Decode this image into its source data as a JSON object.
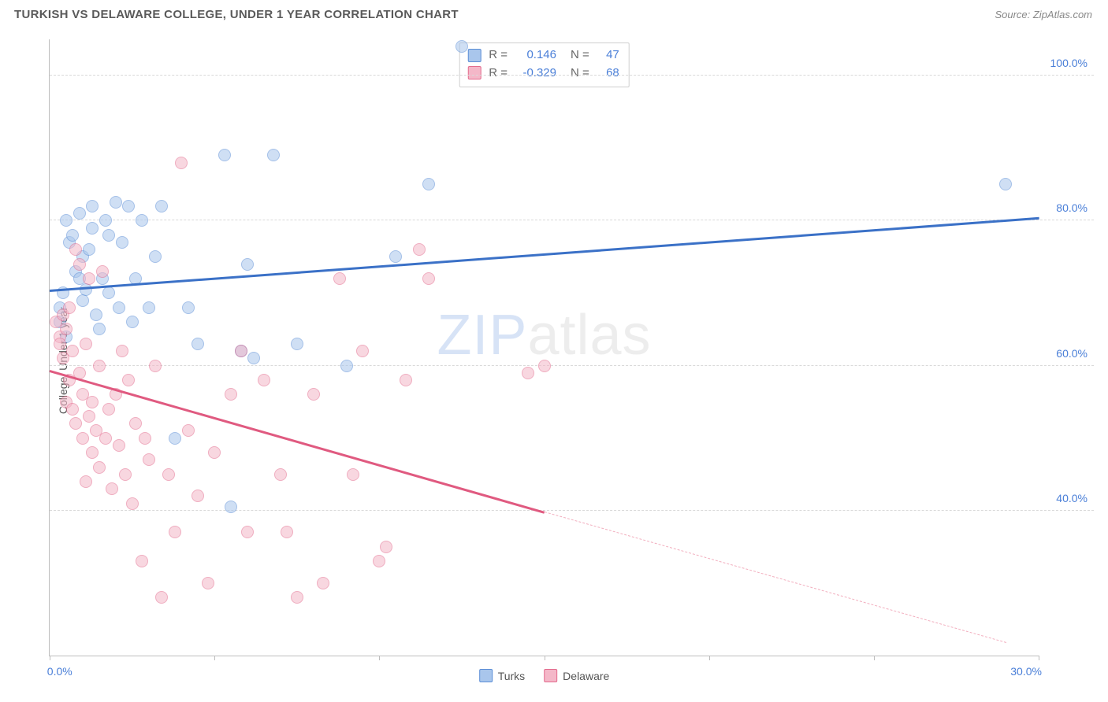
{
  "title": "TURKISH VS DELAWARE COLLEGE, UNDER 1 YEAR CORRELATION CHART",
  "source": "Source: ZipAtlas.com",
  "ylabel": "College, Under 1 year",
  "watermark_prefix": "ZIP",
  "watermark_suffix": "atlas",
  "chart": {
    "type": "scatter",
    "xlim": [
      0,
      30
    ],
    "ylim": [
      20,
      105
    ],
    "xticks": [
      0,
      5,
      10,
      15,
      20,
      25,
      30
    ],
    "xticks_labeled": {
      "0": "0.0%",
      "30": "30.0%"
    },
    "yticks": [
      40,
      60,
      80,
      100
    ],
    "ytick_labels": [
      "40.0%",
      "60.0%",
      "80.0%",
      "100.0%"
    ],
    "grid_color": "#d9d9d9",
    "axis_color": "#bdbdbd",
    "tick_label_color": "#4a7fd8",
    "marker_radius": 8,
    "background_color": "#ffffff",
    "series": [
      {
        "name": "Turks",
        "fill": "#a9c6ec",
        "stroke": "#5b8ed6",
        "fill_opacity": 0.55,
        "R": "0.146",
        "N": "47",
        "trend": {
          "x1": 0,
          "y1": 70.5,
          "x2": 30,
          "y2": 80.5,
          "color": "#3b71c7",
          "width": 2.5
        },
        "points": [
          [
            0.3,
            68
          ],
          [
            0.3,
            66
          ],
          [
            0.4,
            70
          ],
          [
            0.5,
            80
          ],
          [
            0.5,
            64
          ],
          [
            0.6,
            77
          ],
          [
            0.7,
            78
          ],
          [
            0.8,
            73
          ],
          [
            0.9,
            81
          ],
          [
            0.9,
            72
          ],
          [
            1.0,
            75
          ],
          [
            1.0,
            69
          ],
          [
            1.1,
            70.5
          ],
          [
            1.2,
            76
          ],
          [
            1.3,
            82
          ],
          [
            1.3,
            79
          ],
          [
            1.4,
            67
          ],
          [
            1.5,
            65
          ],
          [
            1.6,
            72
          ],
          [
            1.7,
            80
          ],
          [
            1.8,
            70
          ],
          [
            1.8,
            78
          ],
          [
            2.0,
            82.5
          ],
          [
            2.1,
            68
          ],
          [
            2.2,
            77
          ],
          [
            2.4,
            82
          ],
          [
            2.5,
            66
          ],
          [
            2.6,
            72
          ],
          [
            2.8,
            80
          ],
          [
            3.0,
            68
          ],
          [
            3.2,
            75
          ],
          [
            3.4,
            82
          ],
          [
            3.8,
            50
          ],
          [
            4.2,
            68
          ],
          [
            4.5,
            63
          ],
          [
            5.3,
            89
          ],
          [
            5.5,
            40.5
          ],
          [
            5.8,
            62
          ],
          [
            6.0,
            74
          ],
          [
            6.2,
            61
          ],
          [
            6.8,
            89
          ],
          [
            7.5,
            63
          ],
          [
            9.0,
            60
          ],
          [
            10.5,
            75
          ],
          [
            11.5,
            85
          ],
          [
            12.5,
            104
          ],
          [
            29.0,
            85
          ]
        ]
      },
      {
        "name": "Delaware",
        "fill": "#f4b7c8",
        "stroke": "#e36b8d",
        "fill_opacity": 0.55,
        "R": "-0.329",
        "N": "68",
        "trend": {
          "x1": 0,
          "y1": 59.5,
          "x2": 15,
          "y2": 40,
          "color": "#e05a80",
          "width": 2.5
        },
        "trend_dash": {
          "x1": 15,
          "y1": 40,
          "x2": 29,
          "y2": 22,
          "color": "#f2aebe"
        },
        "points": [
          [
            0.2,
            66
          ],
          [
            0.3,
            64
          ],
          [
            0.3,
            63
          ],
          [
            0.4,
            61
          ],
          [
            0.4,
            67
          ],
          [
            0.5,
            65
          ],
          [
            0.5,
            55
          ],
          [
            0.6,
            58
          ],
          [
            0.6,
            68
          ],
          [
            0.7,
            62
          ],
          [
            0.7,
            54
          ],
          [
            0.8,
            76
          ],
          [
            0.8,
            52
          ],
          [
            0.9,
            59
          ],
          [
            0.9,
            74
          ],
          [
            1.0,
            56
          ],
          [
            1.0,
            50
          ],
          [
            1.1,
            63
          ],
          [
            1.1,
            44
          ],
          [
            1.2,
            53
          ],
          [
            1.2,
            72
          ],
          [
            1.3,
            48
          ],
          [
            1.3,
            55
          ],
          [
            1.4,
            51
          ],
          [
            1.5,
            46
          ],
          [
            1.5,
            60
          ],
          [
            1.6,
            73
          ],
          [
            1.7,
            50
          ],
          [
            1.8,
            54
          ],
          [
            1.9,
            43
          ],
          [
            2.0,
            56
          ],
          [
            2.1,
            49
          ],
          [
            2.2,
            62
          ],
          [
            2.3,
            45
          ],
          [
            2.4,
            58
          ],
          [
            2.5,
            41
          ],
          [
            2.6,
            52
          ],
          [
            2.8,
            33
          ],
          [
            2.9,
            50
          ],
          [
            3.0,
            47
          ],
          [
            3.2,
            60
          ],
          [
            3.4,
            28
          ],
          [
            3.6,
            45
          ],
          [
            3.8,
            37
          ],
          [
            4.0,
            88
          ],
          [
            4.2,
            51
          ],
          [
            4.5,
            42
          ],
          [
            4.8,
            30
          ],
          [
            5.0,
            48
          ],
          [
            5.5,
            56
          ],
          [
            5.8,
            62
          ],
          [
            6.0,
            37
          ],
          [
            6.5,
            58
          ],
          [
            7.0,
            45
          ],
          [
            7.2,
            37
          ],
          [
            7.5,
            28
          ],
          [
            8.0,
            56
          ],
          [
            8.3,
            30
          ],
          [
            8.8,
            72
          ],
          [
            9.2,
            45
          ],
          [
            9.5,
            62
          ],
          [
            10.0,
            33
          ],
          [
            10.2,
            35
          ],
          [
            10.8,
            58
          ],
          [
            11.2,
            76
          ],
          [
            11.5,
            72
          ],
          [
            14.5,
            59
          ],
          [
            15.0,
            60
          ]
        ]
      }
    ],
    "stats_box": {
      "r_label": "R =",
      "n_label": "N ="
    },
    "bottom_legend": [
      "Turks",
      "Delaware"
    ]
  }
}
